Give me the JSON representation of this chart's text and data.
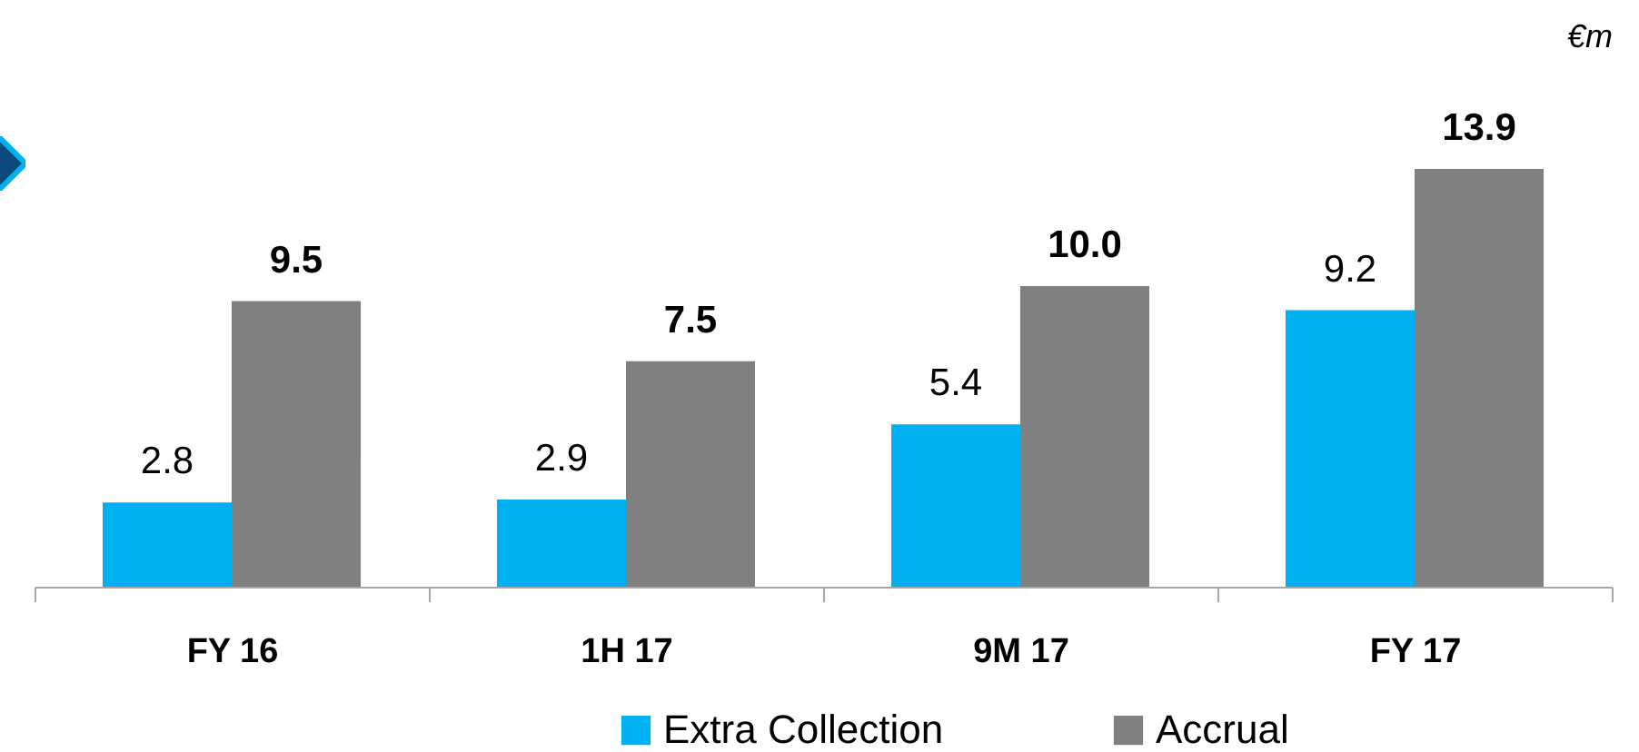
{
  "chart_data": {
    "type": "bar",
    "categories": [
      "FY 16",
      "1H 17",
      "9M 17",
      "FY 17"
    ],
    "series": [
      {
        "name": "Extra Collection",
        "color": "#00b0f0",
        "values": [
          2.8,
          2.9,
          5.4,
          9.2
        ],
        "value_labels": [
          "2.8",
          "2.9",
          "5.4",
          "9.2"
        ]
      },
      {
        "name": "Accrual",
        "color": "#808080",
        "values": [
          9.5,
          7.5,
          10.0,
          13.9
        ],
        "value_labels": [
          "9.5",
          "7.5",
          "10.0",
          "13.9"
        ]
      }
    ],
    "legend": "bottom",
    "annotations": [
      "€m"
    ]
  }
}
